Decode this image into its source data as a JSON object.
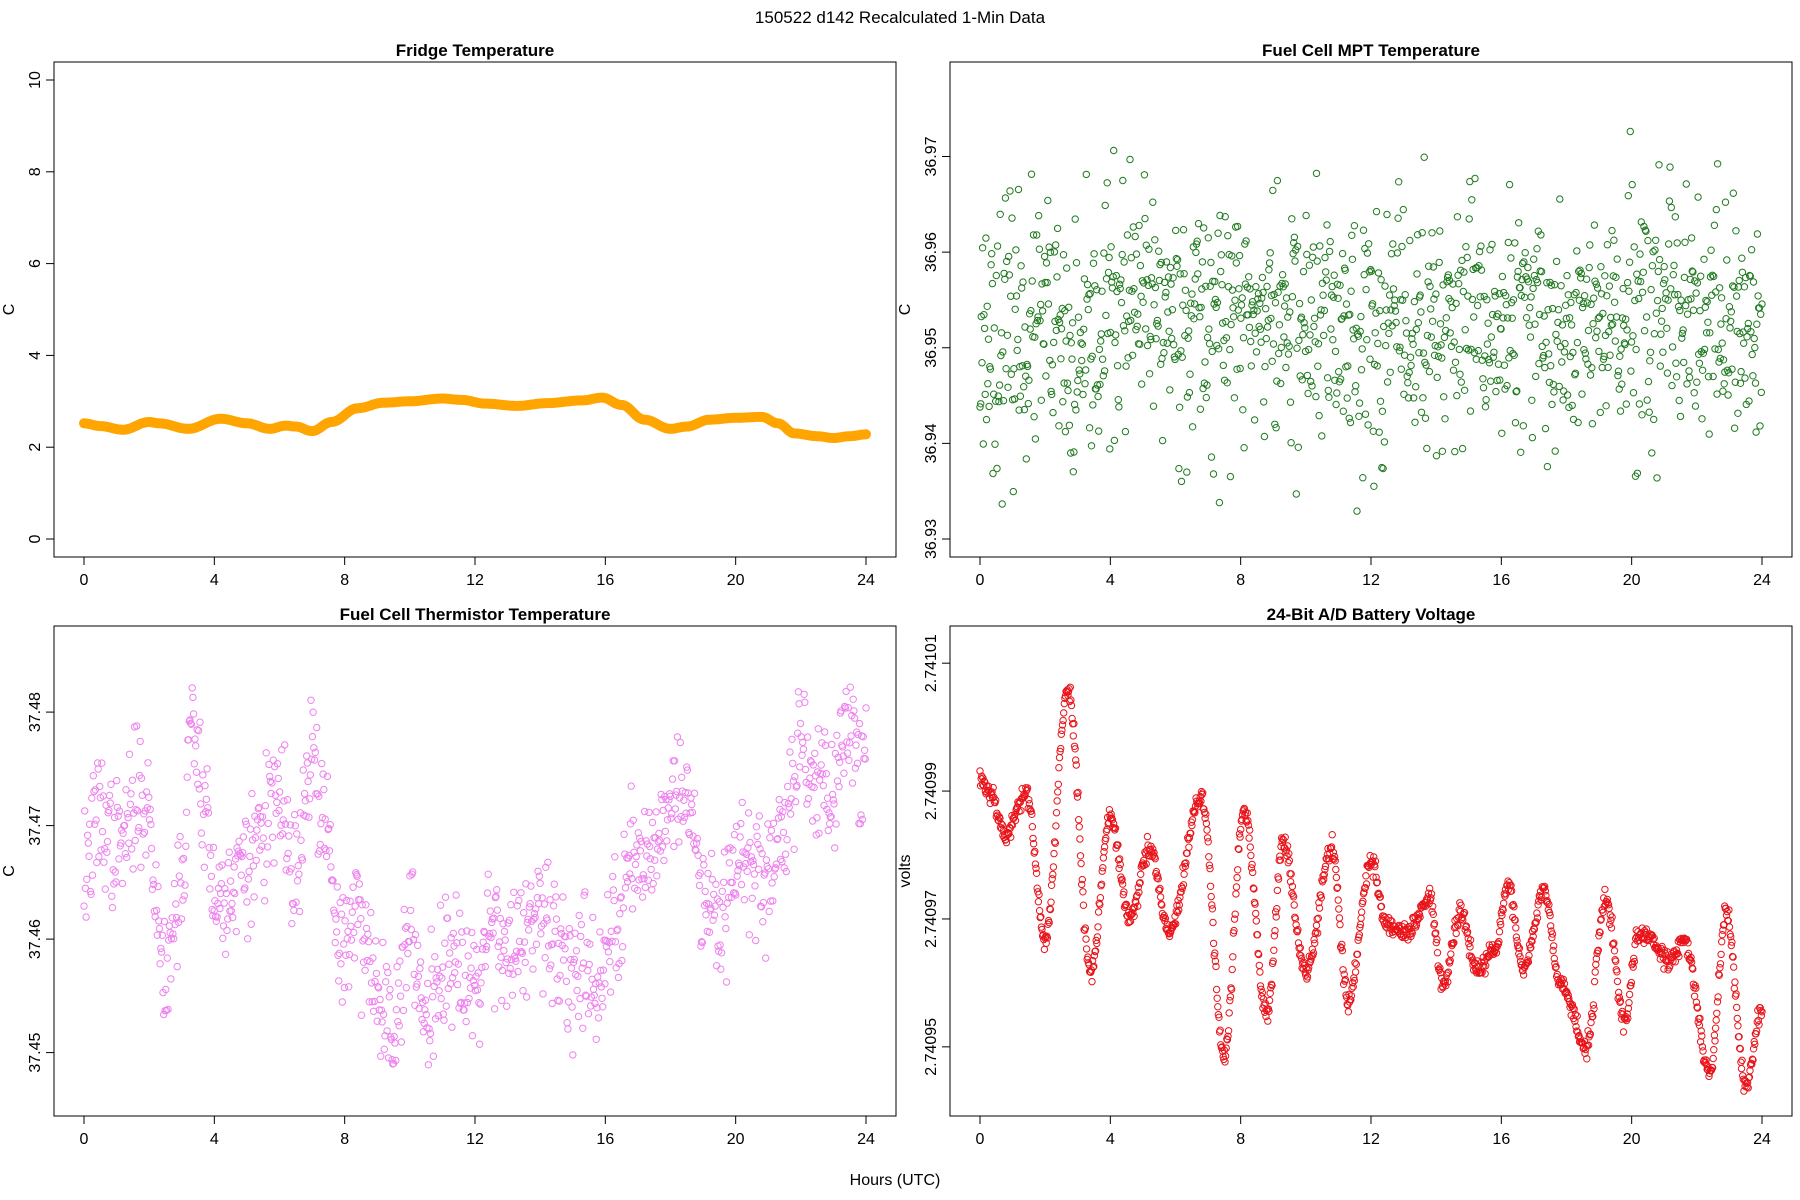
{
  "title": "150522   d142   Recalculated 1-Min Data",
  "shared_xlabel": "Hours (UTC)",
  "chart_data": [
    {
      "id": "fridge",
      "type": "scatter",
      "title": "Fridge Temperature",
      "xlabel": "Hours (UTC)",
      "ylabel": "C",
      "xlim": [
        0,
        24
      ],
      "ylim": [
        0,
        10
      ],
      "xticks": [
        "0",
        "4",
        "8",
        "12",
        "16",
        "20",
        "24"
      ],
      "yticks": [
        "0",
        "2",
        "4",
        "6",
        "8",
        "10"
      ],
      "color": "#FFA500",
      "marker": "filled",
      "series_knots": [
        [
          0,
          2.52
        ],
        [
          0.5,
          2.46
        ],
        [
          1.2,
          2.38
        ],
        [
          2.0,
          2.55
        ],
        [
          2.3,
          2.52
        ],
        [
          3.2,
          2.4
        ],
        [
          4.2,
          2.62
        ],
        [
          5.0,
          2.52
        ],
        [
          5.7,
          2.4
        ],
        [
          6.2,
          2.47
        ],
        [
          6.5,
          2.45
        ],
        [
          7.0,
          2.35
        ],
        [
          7.6,
          2.55
        ],
        [
          8.4,
          2.85
        ],
        [
          9.2,
          2.97
        ],
        [
          10.0,
          3.0
        ],
        [
          11.0,
          3.06
        ],
        [
          11.6,
          3.03
        ],
        [
          12.3,
          2.95
        ],
        [
          13.3,
          2.9
        ],
        [
          14.2,
          2.96
        ],
        [
          15.3,
          3.02
        ],
        [
          15.9,
          3.08
        ],
        [
          16.5,
          2.92
        ],
        [
          17.2,
          2.6
        ],
        [
          18.0,
          2.4
        ],
        [
          18.5,
          2.45
        ],
        [
          19.2,
          2.6
        ],
        [
          20.0,
          2.64
        ],
        [
          20.8,
          2.66
        ],
        [
          21.3,
          2.52
        ],
        [
          21.8,
          2.3
        ],
        [
          22.5,
          2.24
        ],
        [
          23.0,
          2.2
        ],
        [
          23.5,
          2.24
        ],
        [
          24.0,
          2.28
        ]
      ],
      "noise": 0.0,
      "n_points": 600,
      "seed": 11
    },
    {
      "id": "mpt",
      "type": "scatter",
      "title": "Fuel Cell MPT Temperature",
      "xlabel": "Hours (UTC)",
      "ylabel": "C",
      "xlim": [
        0,
        24
      ],
      "ylim": [
        36.93,
        36.978
      ],
      "xticks": [
        "0",
        "4",
        "8",
        "12",
        "16",
        "20",
        "24"
      ],
      "yticks": [
        "36.93",
        "36.94",
        "36.95",
        "36.96",
        "36.97"
      ],
      "color": "#1F7A1F",
      "marker": "open",
      "series_knots": [
        [
          0,
          36.951
        ],
        [
          2,
          36.952
        ],
        [
          3,
          36.947
        ],
        [
          4,
          36.954
        ],
        [
          8,
          36.953
        ],
        [
          12,
          36.952
        ],
        [
          16,
          36.952
        ],
        [
          20,
          36.952
        ],
        [
          24,
          36.952
        ]
      ],
      "noise": 0.0065,
      "n_points": 1200,
      "seed": 23
    },
    {
      "id": "thermistor",
      "type": "scatter",
      "title": "Fuel Cell Thermistor Temperature",
      "xlabel": "Hours (UTC)",
      "ylabel": "C",
      "xlim": [
        0,
        24
      ],
      "ylim": [
        37.446,
        37.486
      ],
      "xticks": [
        "0",
        "4",
        "8",
        "12",
        "16",
        "20",
        "24"
      ],
      "yticks": [
        "37.45",
        "37.46",
        "37.47",
        "37.48"
      ],
      "color": "#EE82EE",
      "marker": "open",
      "series_knots": [
        [
          0,
          37.466
        ],
        [
          0.5,
          37.471
        ],
        [
          1,
          37.468
        ],
        [
          1.8,
          37.473
        ],
        [
          2.5,
          37.458
        ],
        [
          3.0,
          37.465
        ],
        [
          3.3,
          37.479
        ],
        [
          3.7,
          37.473
        ],
        [
          4.0,
          37.463
        ],
        [
          5.0,
          37.466
        ],
        [
          5.5,
          37.47
        ],
        [
          6.0,
          37.472
        ],
        [
          6.5,
          37.465
        ],
        [
          7.0,
          37.476
        ],
        [
          7.4,
          37.47
        ],
        [
          7.8,
          37.46
        ],
        [
          8.5,
          37.462
        ],
        [
          9.0,
          37.455
        ],
        [
          9.5,
          37.453
        ],
        [
          10.0,
          37.46
        ],
        [
          10.5,
          37.454
        ],
        [
          11.0,
          37.458
        ],
        [
          11.5,
          37.459
        ],
        [
          12.0,
          37.456
        ],
        [
          12.5,
          37.462
        ],
        [
          13.0,
          37.459
        ],
        [
          14.0,
          37.461
        ],
        [
          15.0,
          37.458
        ],
        [
          16.0,
          37.457
        ],
        [
          16.3,
          37.462
        ],
        [
          16.8,
          37.467
        ],
        [
          17.5,
          37.468
        ],
        [
          18.0,
          37.473
        ],
        [
          18.5,
          37.472
        ],
        [
          19.0,
          37.465
        ],
        [
          19.5,
          37.462
        ],
        [
          20.0,
          37.468
        ],
        [
          20.5,
          37.466
        ],
        [
          21.0,
          37.465
        ],
        [
          21.5,
          37.47
        ],
        [
          22.0,
          37.478
        ],
        [
          22.5,
          37.474
        ],
        [
          23.0,
          37.473
        ],
        [
          23.5,
          37.479
        ],
        [
          24.0,
          37.476
        ]
      ],
      "noise": 0.0028,
      "n_points": 1100,
      "seed": 37
    },
    {
      "id": "battery",
      "type": "scatter",
      "title": "24-Bit A/D Battery Voltage",
      "xlabel": "Hours (UTC)",
      "ylabel": "volts",
      "xlim": [
        0,
        24
      ],
      "ylim": [
        2.740942,
        2.741013
      ],
      "xticks": [
        "0",
        "4",
        "8",
        "12",
        "16",
        "20",
        "24"
      ],
      "yticks": [
        "2.74095",
        "2.74097",
        "2.74099",
        "2.74101"
      ],
      "color": "#E8141A",
      "marker": "open",
      "series_knots": [
        [
          0,
          2.740992
        ],
        [
          0.3,
          2.74099
        ],
        [
          0.8,
          2.740983
        ],
        [
          1.4,
          2.74099
        ],
        [
          2.0,
          2.740967
        ],
        [
          2.7,
          2.741006
        ],
        [
          3.4,
          2.740962
        ],
        [
          4.0,
          2.740986
        ],
        [
          4.6,
          2.74097
        ],
        [
          5.2,
          2.740981
        ],
        [
          5.8,
          2.740968
        ],
        [
          6.8,
          2.740989
        ],
        [
          7.5,
          2.740949
        ],
        [
          8.1,
          2.740987
        ],
        [
          8.8,
          2.740955
        ],
        [
          9.3,
          2.740982
        ],
        [
          10.0,
          2.740962
        ],
        [
          10.8,
          2.740981
        ],
        [
          11.3,
          2.740957
        ],
        [
          12.0,
          2.740979
        ],
        [
          12.5,
          2.740969
        ],
        [
          13.1,
          2.740968
        ],
        [
          13.8,
          2.740973
        ],
        [
          14.2,
          2.74096
        ],
        [
          14.8,
          2.740971
        ],
        [
          15.2,
          2.740962
        ],
        [
          15.8,
          2.740965
        ],
        [
          16.2,
          2.740975
        ],
        [
          16.7,
          2.740962
        ],
        [
          17.3,
          2.740975
        ],
        [
          17.8,
          2.74096
        ],
        [
          18.6,
          2.74095
        ],
        [
          19.2,
          2.740973
        ],
        [
          19.8,
          2.740954
        ],
        [
          20.2,
          2.740968
        ],
        [
          20.6,
          2.740967
        ],
        [
          21.2,
          2.740963
        ],
        [
          21.6,
          2.740967
        ],
        [
          22.4,
          2.740946
        ],
        [
          22.9,
          2.740971
        ],
        [
          23.5,
          2.740944
        ],
        [
          24.0,
          2.740956
        ]
      ],
      "noise": 8e-07,
      "n_points": 1300,
      "seed": 53
    }
  ]
}
